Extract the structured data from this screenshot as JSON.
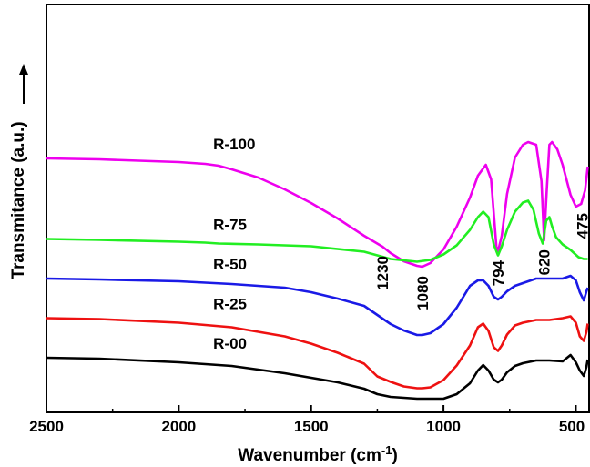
{
  "chart_data": {
    "type": "line",
    "xlabel": "Wavenumber (cm",
    "xlabel_sup": "-1",
    "xlabel_end": ")",
    "ylabel": "Transmitance (a.u.)",
    "xlim": [
      2500,
      450
    ],
    "x_reversed": true,
    "y_ticks_shown": false,
    "grid": false,
    "x_ticks": [
      2500,
      2000,
      1500,
      1000,
      500
    ],
    "x_tick_labels": [
      "2500",
      "2000",
      "1500",
      "1000",
      "500"
    ],
    "series": [
      {
        "name": "R-100",
        "color": "#ee00ee",
        "offset": 100,
        "points": [
          [
            2500,
            45
          ],
          [
            2300,
            44
          ],
          [
            2000,
            41
          ],
          [
            1900,
            39
          ],
          [
            1850,
            37
          ],
          [
            1800,
            33
          ],
          [
            1700,
            24
          ],
          [
            1600,
            11
          ],
          [
            1500,
            -4
          ],
          [
            1400,
            -21
          ],
          [
            1300,
            -40
          ],
          [
            1230,
            -52
          ],
          [
            1200,
            -59
          ],
          [
            1150,
            -68
          ],
          [
            1100,
            -73
          ],
          [
            1080,
            -74
          ],
          [
            1050,
            -70
          ],
          [
            1000,
            -55
          ],
          [
            950,
            -30
          ],
          [
            900,
            2
          ],
          [
            870,
            26
          ],
          [
            840,
            38
          ],
          [
            820,
            22
          ],
          [
            800,
            -52
          ],
          [
            794,
            -57
          ],
          [
            780,
            -40
          ],
          [
            760,
            6
          ],
          [
            730,
            46
          ],
          [
            700,
            60
          ],
          [
            680,
            63
          ],
          [
            650,
            60
          ],
          [
            630,
            20
          ],
          [
            620,
            -45
          ],
          [
            610,
            10
          ],
          [
            600,
            60
          ],
          [
            590,
            63
          ],
          [
            570,
            55
          ],
          [
            550,
            38
          ],
          [
            520,
            5
          ],
          [
            500,
            -8
          ],
          [
            480,
            -5
          ],
          [
            465,
            10
          ],
          [
            455,
            36
          ]
        ]
      },
      {
        "name": "R-75",
        "color": "#22ee22",
        "offset": 75,
        "points": [
          [
            2500,
            0
          ],
          [
            2300,
            -1
          ],
          [
            2000,
            -3
          ],
          [
            1900,
            -4
          ],
          [
            1850,
            -5
          ],
          [
            1700,
            -6
          ],
          [
            1500,
            -8
          ],
          [
            1300,
            -14
          ],
          [
            1200,
            -22
          ],
          [
            1100,
            -25
          ],
          [
            1050,
            -23
          ],
          [
            1000,
            -17
          ],
          [
            950,
            -7
          ],
          [
            900,
            10
          ],
          [
            870,
            24
          ],
          [
            850,
            30
          ],
          [
            830,
            24
          ],
          [
            810,
            -6
          ],
          [
            794,
            -18
          ],
          [
            780,
            -8
          ],
          [
            760,
            10
          ],
          [
            730,
            30
          ],
          [
            700,
            40
          ],
          [
            680,
            42
          ],
          [
            660,
            32
          ],
          [
            640,
            6
          ],
          [
            625,
            -5
          ],
          [
            612,
            20
          ],
          [
            600,
            24
          ],
          [
            590,
            14
          ],
          [
            575,
            2
          ],
          [
            550,
            -6
          ],
          [
            520,
            -12
          ],
          [
            490,
            -20
          ],
          [
            470,
            -22
          ],
          [
            455,
            -22
          ]
        ]
      },
      {
        "name": "R-50",
        "color": "#1a1ae6",
        "offset": 50,
        "points": [
          [
            2500,
            0
          ],
          [
            2300,
            -1
          ],
          [
            2000,
            -3
          ],
          [
            1800,
            -6
          ],
          [
            1700,
            -8
          ],
          [
            1600,
            -10
          ],
          [
            1500,
            -15
          ],
          [
            1400,
            -22
          ],
          [
            1300,
            -30
          ],
          [
            1250,
            -40
          ],
          [
            1200,
            -50
          ],
          [
            1150,
            -57
          ],
          [
            1100,
            -62
          ],
          [
            1080,
            -62
          ],
          [
            1050,
            -60
          ],
          [
            1000,
            -50
          ],
          [
            950,
            -32
          ],
          [
            900,
            -8
          ],
          [
            870,
            -2
          ],
          [
            850,
            -2
          ],
          [
            830,
            -8
          ],
          [
            810,
            -20
          ],
          [
            794,
            -23
          ],
          [
            780,
            -20
          ],
          [
            760,
            -14
          ],
          [
            730,
            -8
          ],
          [
            700,
            -5
          ],
          [
            650,
            0
          ],
          [
            600,
            0
          ],
          [
            550,
            0
          ],
          [
            520,
            3
          ],
          [
            500,
            -2
          ],
          [
            485,
            -15
          ],
          [
            470,
            -24
          ],
          [
            460,
            -14
          ],
          [
            455,
            -10
          ]
        ]
      },
      {
        "name": "R-25",
        "color": "#ee1111",
        "offset": 25,
        "points": [
          [
            2500,
            0
          ],
          [
            2300,
            -1
          ],
          [
            2000,
            -5
          ],
          [
            1800,
            -10
          ],
          [
            1700,
            -15
          ],
          [
            1600,
            -20
          ],
          [
            1500,
            -28
          ],
          [
            1400,
            -38
          ],
          [
            1300,
            -50
          ],
          [
            1250,
            -64
          ],
          [
            1200,
            -70
          ],
          [
            1150,
            -75
          ],
          [
            1100,
            -77
          ],
          [
            1080,
            -77
          ],
          [
            1050,
            -76
          ],
          [
            1000,
            -68
          ],
          [
            950,
            -52
          ],
          [
            900,
            -30
          ],
          [
            870,
            -10
          ],
          [
            850,
            -6
          ],
          [
            830,
            -14
          ],
          [
            810,
            -32
          ],
          [
            794,
            -36
          ],
          [
            780,
            -30
          ],
          [
            760,
            -18
          ],
          [
            730,
            -8
          ],
          [
            700,
            -5
          ],
          [
            650,
            -2
          ],
          [
            600,
            -2
          ],
          [
            550,
            0
          ],
          [
            520,
            2
          ],
          [
            500,
            -5
          ],
          [
            485,
            -20
          ],
          [
            470,
            -25
          ],
          [
            460,
            -15
          ],
          [
            455,
            -6
          ]
        ]
      },
      {
        "name": "R-00",
        "color": "#000000",
        "offset": 0,
        "points": [
          [
            2500,
            0
          ],
          [
            2300,
            -1
          ],
          [
            2000,
            -5
          ],
          [
            1800,
            -9
          ],
          [
            1700,
            -13
          ],
          [
            1600,
            -17
          ],
          [
            1500,
            -22
          ],
          [
            1400,
            -27
          ],
          [
            1300,
            -34
          ],
          [
            1250,
            -40
          ],
          [
            1200,
            -43
          ],
          [
            1150,
            -44
          ],
          [
            1100,
            -45
          ],
          [
            1000,
            -45
          ],
          [
            950,
            -40
          ],
          [
            900,
            -28
          ],
          [
            870,
            -14
          ],
          [
            850,
            -8
          ],
          [
            830,
            -14
          ],
          [
            810,
            -24
          ],
          [
            794,
            -27
          ],
          [
            780,
            -24
          ],
          [
            760,
            -16
          ],
          [
            730,
            -9
          ],
          [
            700,
            -6
          ],
          [
            650,
            -3
          ],
          [
            600,
            -3
          ],
          [
            550,
            -4
          ],
          [
            520,
            3
          ],
          [
            500,
            -5
          ],
          [
            485,
            -14
          ],
          [
            470,
            -20
          ],
          [
            460,
            -10
          ],
          [
            455,
            -2
          ]
        ]
      }
    ],
    "peak_labels": [
      {
        "text": "1230",
        "x": 1230,
        "series": "R-100"
      },
      {
        "text": "1080",
        "x": 1080,
        "series": "R-100"
      },
      {
        "text": "794",
        "x": 794,
        "series": "R-100"
      },
      {
        "text": "620",
        "x": 620,
        "series": "R-100"
      },
      {
        "text": "475",
        "x": 475,
        "series": "R-100"
      }
    ]
  }
}
